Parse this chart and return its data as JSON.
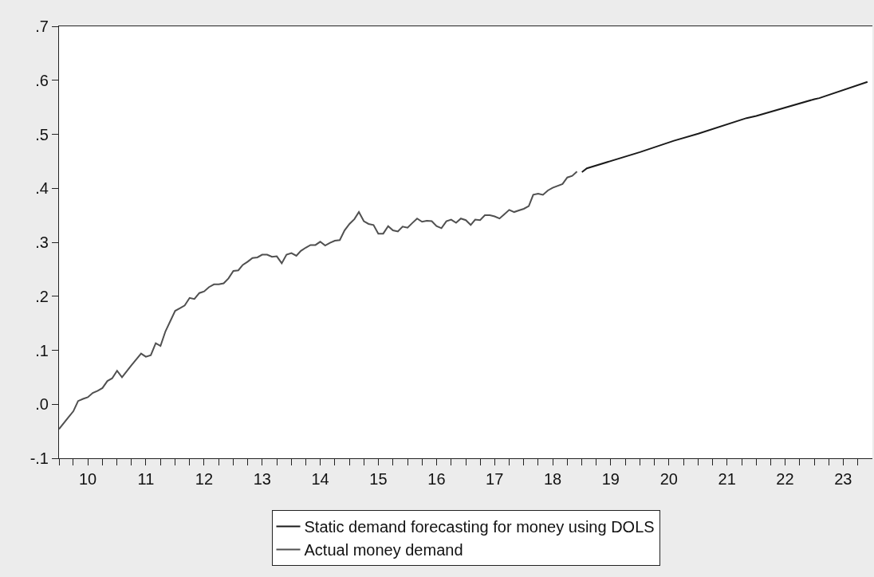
{
  "chart_data": {
    "type": "line",
    "xlim": [
      "2010-01",
      "2024-01"
    ],
    "xticks": [
      {
        "value": "2010-01",
        "label": null
      },
      {
        "value": "2010-04",
        "label": null
      },
      {
        "value": "2010-07",
        "label": "10"
      },
      {
        "value": "2010-10",
        "label": null
      },
      {
        "value": "2011-01",
        "label": null
      },
      {
        "value": "2011-04",
        "label": null
      },
      {
        "value": "2011-07",
        "label": "11"
      },
      {
        "value": "2011-10",
        "label": null
      },
      {
        "value": "2012-01",
        "label": null
      },
      {
        "value": "2012-04",
        "label": null
      },
      {
        "value": "2012-07",
        "label": "12"
      },
      {
        "value": "2012-10",
        "label": null
      },
      {
        "value": "2013-01",
        "label": null
      },
      {
        "value": "2013-04",
        "label": null
      },
      {
        "value": "2013-07",
        "label": "13"
      },
      {
        "value": "2013-10",
        "label": null
      },
      {
        "value": "2014-01",
        "label": null
      },
      {
        "value": "2014-04",
        "label": null
      },
      {
        "value": "2014-07",
        "label": "14"
      },
      {
        "value": "2014-10",
        "label": null
      },
      {
        "value": "2015-01",
        "label": null
      },
      {
        "value": "2015-04",
        "label": null
      },
      {
        "value": "2015-07",
        "label": "15"
      },
      {
        "value": "2015-10",
        "label": null
      },
      {
        "value": "2016-01",
        "label": null
      },
      {
        "value": "2016-04",
        "label": null
      },
      {
        "value": "2016-07",
        "label": "16"
      },
      {
        "value": "2016-10",
        "label": null
      },
      {
        "value": "2017-01",
        "label": null
      },
      {
        "value": "2017-04",
        "label": null
      },
      {
        "value": "2017-07",
        "label": "17"
      },
      {
        "value": "2017-10",
        "label": null
      },
      {
        "value": "2018-01",
        "label": null
      },
      {
        "value": "2018-04",
        "label": null
      },
      {
        "value": "2018-07",
        "label": "18"
      },
      {
        "value": "2018-10",
        "label": null
      },
      {
        "value": "2019-01",
        "label": null
      },
      {
        "value": "2019-04",
        "label": null
      },
      {
        "value": "2019-07",
        "label": "19"
      },
      {
        "value": "2019-10",
        "label": null
      },
      {
        "value": "2020-01",
        "label": null
      },
      {
        "value": "2020-04",
        "label": null
      },
      {
        "value": "2020-07",
        "label": "20"
      },
      {
        "value": "2020-10",
        "label": null
      },
      {
        "value": "2021-01",
        "label": null
      },
      {
        "value": "2021-04",
        "label": null
      },
      {
        "value": "2021-07",
        "label": "21"
      },
      {
        "value": "2021-10",
        "label": null
      },
      {
        "value": "2022-01",
        "label": null
      },
      {
        "value": "2022-04",
        "label": null
      },
      {
        "value": "2022-07",
        "label": "22"
      },
      {
        "value": "2022-10",
        "label": null
      },
      {
        "value": "2023-01",
        "label": null
      },
      {
        "value": "2023-04",
        "label": null
      },
      {
        "value": "2023-07",
        "label": "23"
      },
      {
        "value": "2023-10",
        "label": null
      }
    ],
    "ylim": [
      -0.1,
      0.7
    ],
    "yticks": [
      {
        "value": -0.1,
        "label": "-.1"
      },
      {
        "value": 0.0,
        "label": ".0"
      },
      {
        "value": 0.1,
        "label": ".1"
      },
      {
        "value": 0.2,
        "label": ".2"
      },
      {
        "value": 0.3,
        "label": ".3"
      },
      {
        "value": 0.4,
        "label": ".4"
      },
      {
        "value": 0.5,
        "label": ".5"
      },
      {
        "value": 0.6,
        "label": ".6"
      },
      {
        "value": 0.7,
        "label": ".7"
      }
    ],
    "legend": "bottom",
    "series": [
      {
        "name": "Static demand forecasting for money using DOLS",
        "color": "#1a1a1a",
        "x": [
          "2019-01",
          "2019-02",
          "2020-01",
          "2020-08",
          "2021-01",
          "2021-11",
          "2022-01",
          "2023-01",
          "2023-02",
          "2023-12"
        ],
        "values": [
          0.43,
          0.437,
          0.467,
          0.488,
          0.501,
          0.53,
          0.534,
          0.565,
          0.567,
          0.597
        ]
      },
      {
        "name": "Actual money demand",
        "color": "#505050",
        "x": [
          "2010-01",
          "2010-03",
          "2010-04",
          "2010-05",
          "2010-06",
          "2010-07",
          "2010-08",
          "2010-09",
          "2010-10",
          "2010-11",
          "2010-12",
          "2011-01",
          "2011-02",
          "2011-04",
          "2011-05",
          "2011-06",
          "2011-07",
          "2011-08",
          "2011-09",
          "2011-10",
          "2011-11",
          "2012-01",
          "2012-02",
          "2012-03",
          "2012-04",
          "2012-05",
          "2012-06",
          "2012-07",
          "2012-08",
          "2012-09",
          "2012-10",
          "2012-11",
          "2012-12",
          "2013-01",
          "2013-02",
          "2013-03",
          "2013-04",
          "2013-05",
          "2013-06",
          "2013-07",
          "2013-08",
          "2013-09",
          "2013-10",
          "2013-11",
          "2013-12",
          "2014-01",
          "2014-02",
          "2014-03",
          "2014-04",
          "2014-05",
          "2014-06",
          "2014-07",
          "2014-08",
          "2014-09",
          "2014-10",
          "2014-11",
          "2014-12",
          "2015-01",
          "2015-02",
          "2015-03",
          "2015-04",
          "2015-05",
          "2015-06",
          "2015-07",
          "2015-08",
          "2015-09",
          "2015-10",
          "2015-11",
          "2015-12",
          "2016-01",
          "2016-02",
          "2016-03",
          "2016-04",
          "2016-05",
          "2016-06",
          "2016-07",
          "2016-08",
          "2016-09",
          "2016-10",
          "2016-11",
          "2016-12",
          "2017-01",
          "2017-02",
          "2017-03",
          "2017-04",
          "2017-05",
          "2017-06",
          "2017-07",
          "2017-08",
          "2017-09",
          "2017-10",
          "2017-11",
          "2017-12",
          "2018-01",
          "2018-02",
          "2018-03",
          "2018-04",
          "2018-05",
          "2018-06",
          "2018-07",
          "2018-09",
          "2018-10",
          "2018-11",
          "2018-12"
        ],
        "values": [
          -0.046,
          -0.024,
          -0.013,
          0.006,
          0.01,
          0.013,
          0.021,
          0.025,
          0.03,
          0.043,
          0.048,
          0.062,
          0.05,
          0.072,
          0.083,
          0.094,
          0.088,
          0.091,
          0.113,
          0.108,
          0.135,
          0.173,
          0.178,
          0.183,
          0.197,
          0.195,
          0.206,
          0.209,
          0.217,
          0.222,
          0.222,
          0.224,
          0.233,
          0.247,
          0.248,
          0.258,
          0.264,
          0.271,
          0.272,
          0.277,
          0.277,
          0.273,
          0.274,
          0.261,
          0.277,
          0.28,
          0.275,
          0.284,
          0.29,
          0.295,
          0.295,
          0.301,
          0.294,
          0.299,
          0.303,
          0.304,
          0.322,
          0.334,
          0.343,
          0.356,
          0.339,
          0.334,
          0.332,
          0.316,
          0.316,
          0.33,
          0.322,
          0.32,
          0.329,
          0.327,
          0.336,
          0.344,
          0.338,
          0.34,
          0.339,
          0.33,
          0.326,
          0.339,
          0.342,
          0.336,
          0.344,
          0.341,
          0.332,
          0.342,
          0.341,
          0.35,
          0.35,
          0.348,
          0.344,
          0.352,
          0.36,
          0.356,
          0.359,
          0.362,
          0.367,
          0.388,
          0.39,
          0.388,
          0.396,
          0.401,
          0.408,
          0.42,
          0.423,
          0.431
        ]
      }
    ]
  }
}
